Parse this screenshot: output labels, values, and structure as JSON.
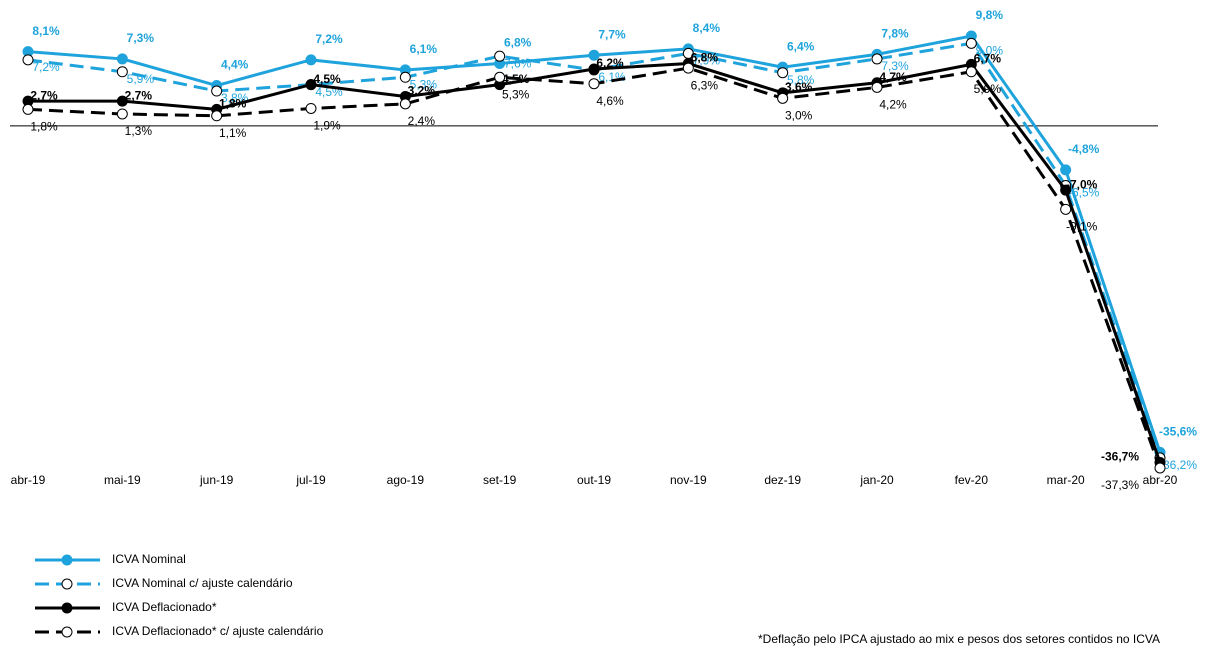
{
  "chart_data": {
    "type": "line",
    "categories": [
      "abr-19",
      "mai-19",
      "jun-19",
      "jul-19",
      "ago-19",
      "set-19",
      "out-19",
      "nov-19",
      "dez-19",
      "jan-20",
      "fev-20",
      "mar-20",
      "abr-20"
    ],
    "series": [
      {
        "name": "ICVA Nominal",
        "color": "#1fa3dc",
        "line_style": "solid",
        "marker_fill": "filled",
        "label_weight": "bold",
        "values": [
          8.1,
          7.3,
          4.4,
          7.2,
          6.1,
          6.8,
          7.7,
          8.4,
          6.4,
          7.8,
          9.8,
          -4.8,
          -35.6
        ],
        "value_labels": [
          "8,1%",
          "7,3%",
          "4,4%",
          "7,2%",
          "6,1%",
          "6,8%",
          "7,7%",
          "8,4%",
          "6,4%",
          "7,8%",
          "9,8%",
          "-4,8%",
          "-35,6%"
        ]
      },
      {
        "name": "ICVA Nominal c/ ajuste calendário",
        "color": "#1fa3dc",
        "line_style": "dashed",
        "marker_fill": "hollow",
        "label_weight": "normal",
        "values": [
          7.2,
          5.9,
          3.8,
          4.5,
          5.3,
          7.6,
          6.1,
          7.9,
          5.8,
          7.3,
          9.0,
          -6.5,
          -36.2
        ],
        "value_labels": [
          "7,2%",
          "5,9%",
          "3,8%",
          "4,5%",
          "5,3%",
          "7,6%",
          "6,1%",
          "7,9%",
          "5,8%",
          "7,3%",
          "9,0%",
          "-6,5%",
          "-36,2%"
        ]
      },
      {
        "name": "ICVA Deflacionado*",
        "color": "#000000",
        "line_style": "solid",
        "marker_fill": "filled",
        "label_weight": "bold",
        "values": [
          2.7,
          2.7,
          1.8,
          4.5,
          3.2,
          4.5,
          6.2,
          6.8,
          3.6,
          4.7,
          6.7,
          -7.0,
          -36.7
        ],
        "value_labels": [
          "2,7%",
          "2,7%",
          "1,8%",
          "4,5%",
          "3,2%",
          "4,5%",
          "6,2%",
          "6,8%",
          "3,6%",
          "4,7%",
          "6,7%",
          "-7,0%",
          "-36,7%"
        ]
      },
      {
        "name": "ICVA Deflacionado*  c/ ajuste calendário",
        "color": "#000000",
        "line_style": "dashed",
        "marker_fill": "hollow",
        "label_weight": "normal",
        "values": [
          1.8,
          1.3,
          1.1,
          1.9,
          2.4,
          5.3,
          4.6,
          6.3,
          3.0,
          4.2,
          5.9,
          -9.1,
          -37.3
        ],
        "value_labels": [
          "1,8%",
          "1,3%",
          "1,1%",
          "1,9%",
          "2,4%",
          "5,3%",
          "4,6%",
          "6,3%",
          "3,0%",
          "4,2%",
          "5,9%",
          "-9,1%",
          "-37,3%"
        ]
      }
    ],
    "footnote": "*Deflação pelo IPCA ajustado ao mix e pesos dos setores contidos no ICVA"
  }
}
